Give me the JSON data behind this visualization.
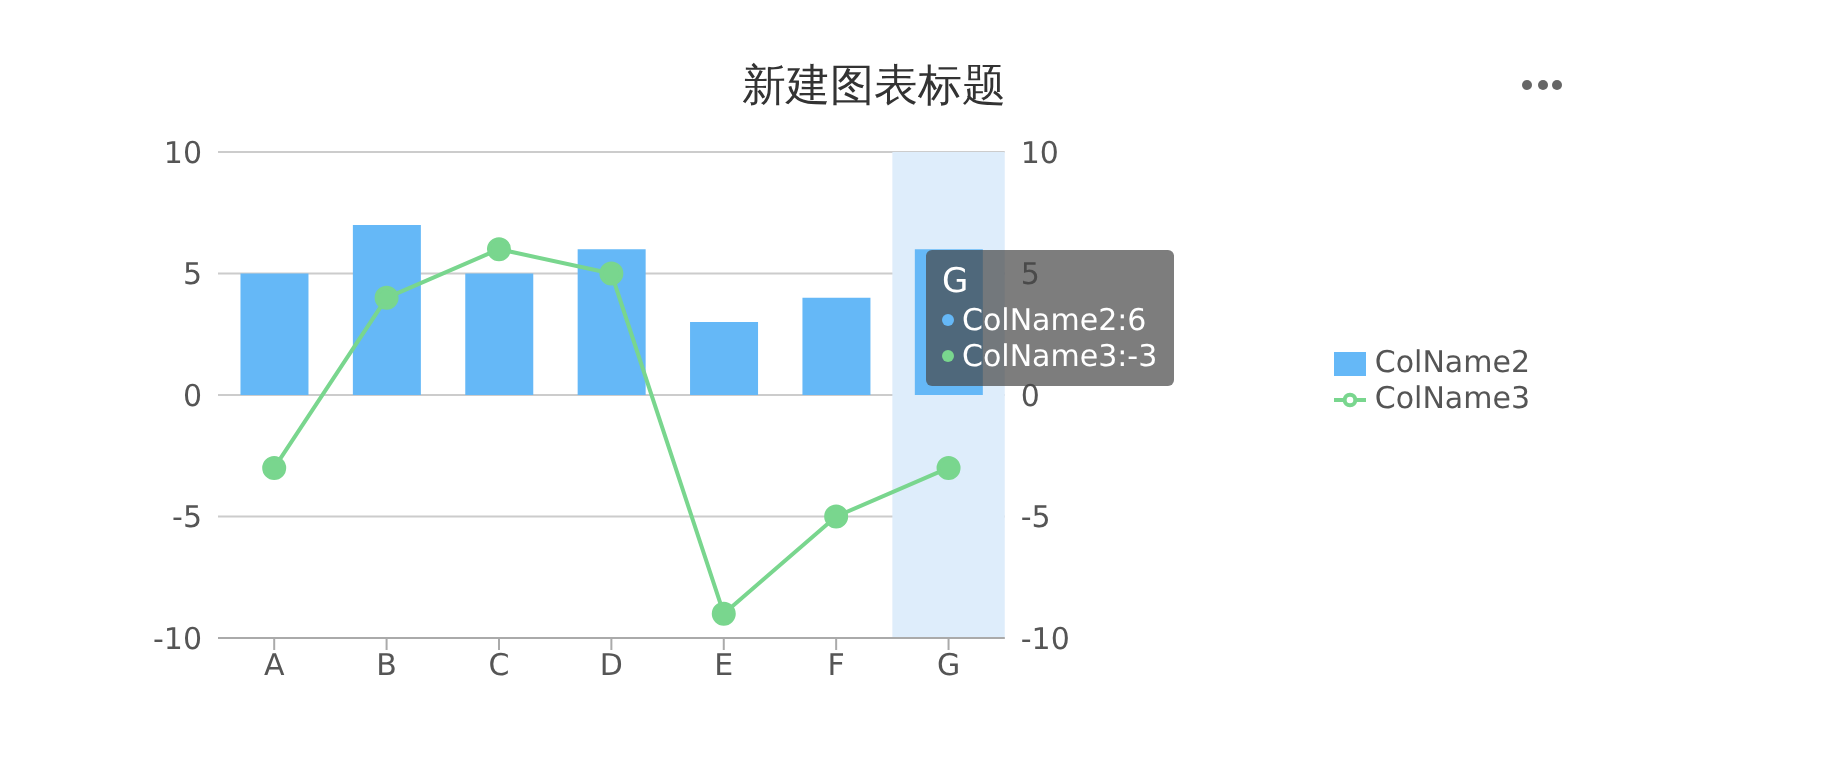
{
  "chart_data": {
    "type": "bar",
    "title": "新建图表标题",
    "categories": [
      "A",
      "B",
      "C",
      "D",
      "E",
      "F",
      "G"
    ],
    "series": [
      {
        "name": "ColName2",
        "color": "#65b8f7",
        "values": [
          5,
          7,
          5,
          6,
          3,
          4,
          6
        ]
      },
      {
        "name": "ColName3",
        "type": "line",
        "color": "#79d68e",
        "values": [
          -3,
          4,
          6,
          5,
          -9,
          -5,
          -3
        ]
      }
    ],
    "ylim": [
      -10,
      10
    ],
    "yticks": [
      -10,
      -5,
      0,
      5,
      10
    ],
    "y2lim": [
      -10,
      10
    ],
    "y2ticks": [
      -10,
      -5,
      0,
      5,
      10
    ],
    "grid": "y",
    "legend": "right",
    "marker": "circle",
    "line_style": "solid",
    "bands": [
      {
        "axis": "x",
        "from": "G",
        "to": "G",
        "color": "#deedfb"
      }
    ],
    "annotations": [
      "G",
      "ColName2:6",
      "ColName3:-3"
    ]
  }
}
